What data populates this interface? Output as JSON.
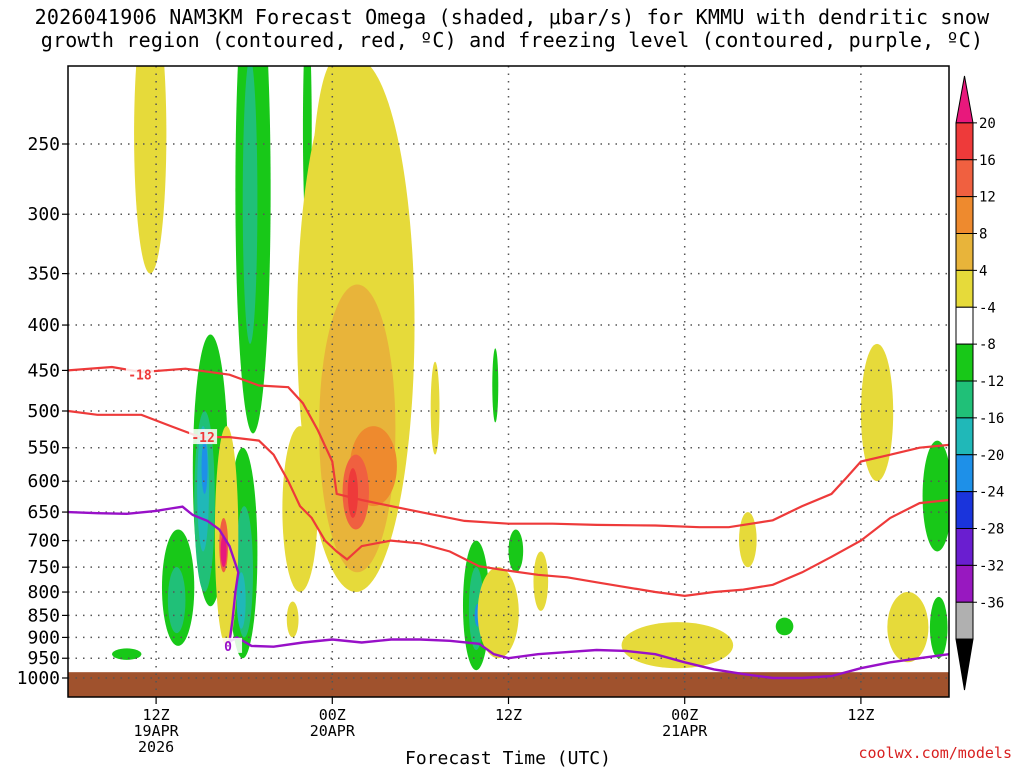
{
  "title": {
    "line1": "2026041906 NAM3KM Forecast Omega (shaded, μbar/s) for KMMU with dendritic snow",
    "line2": "growth region (contoured, red, ºC) and freezing level (contoured, purple, ºC)"
  },
  "watermark": "coolwx.com/models",
  "chart_data": {
    "type": "heatmap",
    "xlabel": "Forecast Time (UTC)",
    "x_ticks": [
      {
        "hour": 6,
        "lines": [
          "12Z",
          "19APR",
          "2026"
        ]
      },
      {
        "hour": 18,
        "lines": [
          "00Z",
          "20APR"
        ]
      },
      {
        "hour": 30,
        "lines": [
          "12Z"
        ]
      },
      {
        "hour": 42,
        "lines": [
          "00Z",
          "21APR"
        ]
      },
      {
        "hour": 54,
        "lines": [
          "12Z"
        ]
      }
    ],
    "xlim": [
      0,
      60
    ],
    "ylabel": "",
    "y_ticks": [
      250,
      300,
      350,
      400,
      450,
      500,
      550,
      600,
      650,
      700,
      750,
      800,
      850,
      900,
      950,
      1000
    ],
    "ylim": [
      1000,
      200
    ],
    "y_scale": "log",
    "grid": true,
    "colorbar": {
      "label_values": [
        20,
        16,
        12,
        8,
        4,
        -4,
        -8,
        -12,
        -16,
        -20,
        -24,
        -28,
        -32,
        -36
      ],
      "colors": [
        "#e8187c",
        "#ee3a3a",
        "#f06040",
        "#ee8a2e",
        "#e8b43a",
        "#e6da3a",
        "#ffffff",
        "#18c818",
        "#20c078",
        "#20b8b8",
        "#1e90e8",
        "#1a34dc",
        "#6a1ed0",
        "#9818c0",
        "#b0b0b0",
        "#000000"
      ]
    },
    "omega_regions": [
      {
        "kind": "upward",
        "level": -4,
        "color": "#18c818",
        "center": [
          12.6,
          330
        ],
        "radius": [
          1.2,
          200
        ]
      },
      {
        "kind": "upward",
        "level": -8,
        "color": "#20c078",
        "center": [
          12.4,
          310
        ],
        "radius": [
          0.5,
          110
        ]
      },
      {
        "kind": "upward",
        "level": -4,
        "color": "#18c818",
        "center": [
          16.3,
          250
        ],
        "radius": [
          0.3,
          70
        ]
      },
      {
        "kind": "upward",
        "level": -4,
        "color": "#18c818",
        "center": [
          9.7,
          620
        ],
        "radius": [
          1.2,
          210
        ]
      },
      {
        "kind": "upward",
        "level": -8,
        "color": "#20c078",
        "center": [
          9.3,
          650
        ],
        "radius": [
          0.7,
          150
        ]
      },
      {
        "kind": "upward",
        "level": -12,
        "color": "#20b8b8",
        "center": [
          9.2,
          620
        ],
        "radius": [
          0.4,
          100
        ]
      },
      {
        "kind": "upward",
        "level": -16,
        "color": "#1e90e8",
        "center": [
          9.3,
          580
        ],
        "radius": [
          0.2,
          40
        ]
      },
      {
        "kind": "upward",
        "level": -16,
        "color": "#1e90e8",
        "center": [
          7.4,
          840
        ],
        "radius": [
          0.3,
          35
        ]
      },
      {
        "kind": "upward",
        "level": -4,
        "color": "#18c818",
        "center": [
          7.5,
          800
        ],
        "radius": [
          1.1,
          120
        ]
      },
      {
        "kind": "upward",
        "level": -8,
        "color": "#20c078",
        "center": [
          7.4,
          820
        ],
        "radius": [
          0.6,
          70
        ]
      },
      {
        "kind": "upward",
        "level": -4,
        "color": "#18c818",
        "center": [
          11.9,
          750
        ],
        "radius": [
          1.0,
          200
        ]
      },
      {
        "kind": "upward",
        "level": -8,
        "color": "#20c078",
        "center": [
          12.0,
          770
        ],
        "radius": [
          0.6,
          130
        ]
      },
      {
        "kind": "upward",
        "level": -12,
        "color": "#20b8b8",
        "center": [
          11.8,
          820
        ],
        "radius": [
          0.3,
          60
        ]
      },
      {
        "kind": "upward",
        "level": -4,
        "color": "#18c818",
        "center": [
          27.8,
          840
        ],
        "radius": [
          0.9,
          140
        ]
      },
      {
        "kind": "upward",
        "level": -8,
        "color": "#20c078",
        "center": [
          27.8,
          840
        ],
        "radius": [
          0.5,
          90
        ]
      },
      {
        "kind": "upward",
        "level": -16,
        "color": "#1e90e8",
        "center": [
          27.9,
          850
        ],
        "radius": [
          0.2,
          25
        ]
      },
      {
        "kind": "upward",
        "level": -4,
        "color": "#18c818",
        "center": [
          29.1,
          470
        ],
        "radius": [
          0.2,
          45
        ]
      },
      {
        "kind": "upward",
        "level": -4,
        "color": "#18c818",
        "center": [
          30.5,
          720
        ],
        "radius": [
          0.5,
          40
        ]
      },
      {
        "kind": "upward",
        "level": -4,
        "color": "#18c818",
        "center": [
          48.8,
          875
        ],
        "radius": [
          0.6,
          20
        ]
      },
      {
        "kind": "upward",
        "level": -4,
        "color": "#18c818",
        "center": [
          59.2,
          630
        ],
        "radius": [
          1.0,
          90
        ]
      },
      {
        "kind": "upward",
        "level": -4,
        "color": "#18c818",
        "center": [
          59.3,
          880
        ],
        "radius": [
          0.6,
          70
        ]
      },
      {
        "kind": "upward",
        "level": -4,
        "color": "#18c818",
        "center": [
          4.0,
          940
        ],
        "radius": [
          1.0,
          14
        ]
      },
      {
        "kind": "downward",
        "level": 4,
        "color": "#e6da3a",
        "center": [
          19.6,
          500
        ],
        "radius": [
          4.0,
          300
        ]
      },
      {
        "kind": "downward",
        "level": 4,
        "color": "#e6da3a",
        "center": [
          15.8,
          660
        ],
        "radius": [
          1.2,
          140
        ]
      },
      {
        "kind": "downward",
        "level": 4,
        "color": "#e6da3a",
        "center": [
          18.3,
          310
        ],
        "radius": [
          1.7,
          110
        ]
      },
      {
        "kind": "downward",
        "level": 4,
        "color": "#e6da3a",
        "center": [
          5.6,
          260
        ],
        "radius": [
          1.1,
          90
        ]
      },
      {
        "kind": "downward",
        "level": 4,
        "color": "#e6da3a",
        "center": [
          10.8,
          720
        ],
        "radius": [
          0.8,
          200
        ]
      },
      {
        "kind": "downward",
        "level": 8,
        "color": "#e8b43a",
        "center": [
          19.7,
          560
        ],
        "radius": [
          2.6,
          200
        ]
      },
      {
        "kind": "downward",
        "level": 12,
        "color": "#ee8a2e",
        "center": [
          20.8,
          580
        ],
        "radius": [
          1.6,
          60
        ]
      },
      {
        "kind": "downward",
        "level": 16,
        "color": "#f06040",
        "center": [
          19.6,
          620
        ],
        "radius": [
          0.9,
          60
        ]
      },
      {
        "kind": "downward",
        "level": 20,
        "color": "#ee3a3a",
        "center": [
          19.4,
          620
        ],
        "radius": [
          0.35,
          40
        ]
      },
      {
        "kind": "downward",
        "level": 4,
        "color": "#e6da3a",
        "center": [
          10.7,
          690
        ],
        "radius": [
          0.5,
          90
        ]
      },
      {
        "kind": "downward",
        "level": 16,
        "color": "#f06040",
        "center": [
          10.6,
          710
        ],
        "radius": [
          0.3,
          50
        ]
      },
      {
        "kind": "downward",
        "level": 20,
        "color": "#e8187c",
        "center": [
          10.6,
          720
        ],
        "radius": [
          0.2,
          30
        ]
      },
      {
        "kind": "downward",
        "level": 4,
        "color": "#e6da3a",
        "center": [
          41.5,
          920
        ],
        "radius": [
          3.8,
          55
        ]
      },
      {
        "kind": "downward",
        "level": 4,
        "color": "#e6da3a",
        "center": [
          29.3,
          850
        ],
        "radius": [
          1.4,
          100
        ]
      },
      {
        "kind": "downward",
        "level": 4,
        "color": "#e6da3a",
        "center": [
          32.2,
          780
        ],
        "radius": [
          0.5,
          60
        ]
      },
      {
        "kind": "downward",
        "level": 4,
        "color": "#e6da3a",
        "center": [
          55.1,
          510
        ],
        "radius": [
          1.1,
          90
        ]
      },
      {
        "kind": "downward",
        "level": 4,
        "color": "#e6da3a",
        "center": [
          57.2,
          880
        ],
        "radius": [
          1.4,
          80
        ]
      },
      {
        "kind": "downward",
        "level": 4,
        "color": "#e6da3a",
        "center": [
          46.3,
          700
        ],
        "radius": [
          0.6,
          50
        ]
      },
      {
        "kind": "downward",
        "level": 4,
        "color": "#e6da3a",
        "center": [
          25.0,
          500
        ],
        "radius": [
          0.3,
          60
        ]
      },
      {
        "kind": "downward",
        "level": 4,
        "color": "#e6da3a",
        "center": [
          15.3,
          860
        ],
        "radius": [
          0.4,
          40
        ]
      }
    ],
    "dgz_contours": [
      {
        "label": "-18",
        "label_at": [
          4.9,
          455
        ],
        "points": [
          [
            0,
            450
          ],
          [
            3,
            446
          ],
          [
            5,
            452
          ],
          [
            8,
            448
          ],
          [
            11,
            455
          ],
          [
            13,
            468
          ],
          [
            15,
            470
          ],
          [
            16,
            490
          ],
          [
            17,
            525
          ],
          [
            18,
            570
          ],
          [
            18.3,
            620
          ],
          [
            20,
            630
          ],
          [
            22,
            640
          ],
          [
            24,
            650
          ],
          [
            27,
            665
          ],
          [
            30,
            670
          ],
          [
            33,
            670
          ],
          [
            36,
            672
          ],
          [
            40,
            673
          ],
          [
            43,
            676
          ],
          [
            45,
            676
          ],
          [
            48,
            664
          ],
          [
            50,
            640
          ],
          [
            52,
            620
          ],
          [
            53,
            595
          ],
          [
            54,
            570
          ],
          [
            56,
            560
          ],
          [
            58,
            550
          ],
          [
            60,
            546
          ]
        ]
      },
      {
        "label": "-12",
        "label_at": [
          9.2,
          535
        ],
        "points": [
          [
            0,
            500
          ],
          [
            2,
            505
          ],
          [
            5,
            505
          ],
          [
            7,
            520
          ],
          [
            9,
            535
          ],
          [
            11,
            535
          ],
          [
            13,
            540
          ],
          [
            14,
            560
          ],
          [
            15,
            600
          ],
          [
            15.8,
            640
          ],
          [
            16.6,
            660
          ],
          [
            17.5,
            700
          ],
          [
            18.3,
            720
          ],
          [
            19,
            735
          ],
          [
            20,
            710
          ],
          [
            22,
            700
          ],
          [
            24,
            705
          ],
          [
            26,
            720
          ],
          [
            28,
            748
          ],
          [
            29.5,
            755
          ],
          [
            32,
            765
          ],
          [
            34,
            770
          ],
          [
            36,
            780
          ],
          [
            38,
            790
          ],
          [
            40,
            800
          ],
          [
            42,
            808
          ],
          [
            44,
            800
          ],
          [
            46,
            795
          ],
          [
            48,
            785
          ],
          [
            50,
            760
          ],
          [
            52,
            730
          ],
          [
            54,
            700
          ],
          [
            56,
            660
          ],
          [
            58,
            635
          ],
          [
            60,
            630
          ]
        ]
      }
    ],
    "freezing_contour": {
      "label": "0",
      "label_at": [
        10.9,
        920
      ],
      "points": [
        [
          0,
          650
        ],
        [
          2,
          652
        ],
        [
          4,
          653
        ],
        [
          6,
          648
        ],
        [
          7,
          644
        ],
        [
          7.8,
          641
        ],
        [
          8.5,
          655
        ],
        [
          9.5,
          665
        ],
        [
          10.3,
          680
        ],
        [
          11.0,
          710
        ],
        [
          11.6,
          760
        ],
        [
          11.4,
          800
        ],
        [
          11.2,
          860
        ],
        [
          11.0,
          910
        ],
        [
          11.5,
          900
        ],
        [
          12.5,
          920
        ],
        [
          14,
          922
        ],
        [
          16,
          912
        ],
        [
          18,
          905
        ],
        [
          20,
          912
        ],
        [
          22,
          905
        ],
        [
          24,
          905
        ],
        [
          26,
          908
        ],
        [
          28,
          915
        ],
        [
          29,
          940
        ],
        [
          30,
          950
        ],
        [
          32,
          940
        ],
        [
          34,
          935
        ],
        [
          36,
          930
        ],
        [
          38,
          932
        ],
        [
          40,
          940
        ],
        [
          42,
          960
        ],
        [
          44,
          978
        ],
        [
          46,
          990
        ],
        [
          48,
          1000
        ],
        [
          50,
          1000
        ],
        [
          52,
          995
        ],
        [
          54,
          975
        ],
        [
          56,
          960
        ],
        [
          58,
          950
        ],
        [
          60,
          940
        ]
      ]
    },
    "terrain": {
      "color": "#a0522d",
      "surface_pressure": 985
    }
  }
}
